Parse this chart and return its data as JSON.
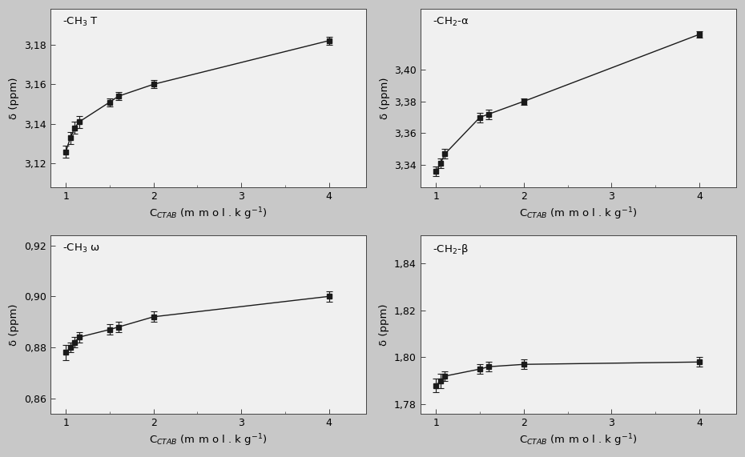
{
  "plots": [
    {
      "title": "-CH$_3$ T",
      "x": [
        1.0,
        1.05,
        1.1,
        1.15,
        1.5,
        1.6,
        2.0,
        4.0
      ],
      "y": [
        3.126,
        3.133,
        3.138,
        3.141,
        3.151,
        3.154,
        3.16,
        3.182
      ],
      "yerr": [
        0.003,
        0.003,
        0.003,
        0.003,
        0.002,
        0.002,
        0.002,
        0.002
      ],
      "ylim": [
        3.108,
        3.198
      ],
      "yticks": [
        3.12,
        3.14,
        3.16,
        3.18
      ],
      "ytick_labels": [
        "3,12",
        "3,14",
        "3,16",
        "3,18"
      ]
    },
    {
      "title": "-CH$_2$-α",
      "x": [
        1.0,
        1.05,
        1.1,
        1.5,
        1.6,
        2.0,
        4.0
      ],
      "y": [
        3.336,
        3.341,
        3.347,
        3.37,
        3.372,
        3.38,
        3.422
      ],
      "yerr": [
        0.003,
        0.003,
        0.003,
        0.003,
        0.003,
        0.002,
        0.002
      ],
      "ylim": [
        3.326,
        3.438
      ],
      "yticks": [
        3.34,
        3.36,
        3.38,
        3.4
      ],
      "ytick_labels": [
        "3,34",
        "3,36",
        "3,38",
        "3,40"
      ]
    },
    {
      "title": "-CH$_3$ ω",
      "x": [
        1.0,
        1.05,
        1.1,
        1.15,
        1.5,
        1.6,
        2.0,
        4.0
      ],
      "y": [
        0.878,
        0.88,
        0.882,
        0.884,
        0.887,
        0.888,
        0.892,
        0.9
      ],
      "yerr": [
        0.003,
        0.002,
        0.002,
        0.002,
        0.002,
        0.002,
        0.002,
        0.002
      ],
      "ylim": [
        0.854,
        0.924
      ],
      "yticks": [
        0.86,
        0.88,
        0.9,
        0.92
      ],
      "ytick_labels": [
        "0,86",
        "0,88",
        "0,90",
        "0,92"
      ]
    },
    {
      "title": "-CH$_2$-β",
      "x": [
        1.0,
        1.05,
        1.1,
        1.5,
        1.6,
        2.0,
        4.0
      ],
      "y": [
        1.788,
        1.79,
        1.792,
        1.795,
        1.796,
        1.797,
        1.798
      ],
      "yerr": [
        0.003,
        0.003,
        0.002,
        0.002,
        0.002,
        0.002,
        0.002
      ],
      "ylim": [
        1.776,
        1.852
      ],
      "yticks": [
        1.78,
        1.8,
        1.82,
        1.84
      ],
      "ytick_labels": [
        "1,78",
        "1,80",
        "1,82",
        "1,84"
      ]
    }
  ],
  "xlabel": "C$_{CTAB}$ (m m o l . k g$^{-1}$)",
  "ylabel": "δ (ppm)",
  "xlim": [
    0.82,
    4.42
  ],
  "xticks": [
    1,
    2,
    3,
    4
  ],
  "xtick_labels": [
    "1",
    "2",
    "3",
    "4"
  ],
  "marker": "s",
  "marker_color": "#1a1a1a",
  "marker_size": 4,
  "capsize": 3,
  "ecolor": "#1a1a1a",
  "bg_color": "#f0f0f0",
  "fig_bg": "#c8c8c8",
  "line_color": "#1a1a1a",
  "linewidth": 1.0
}
